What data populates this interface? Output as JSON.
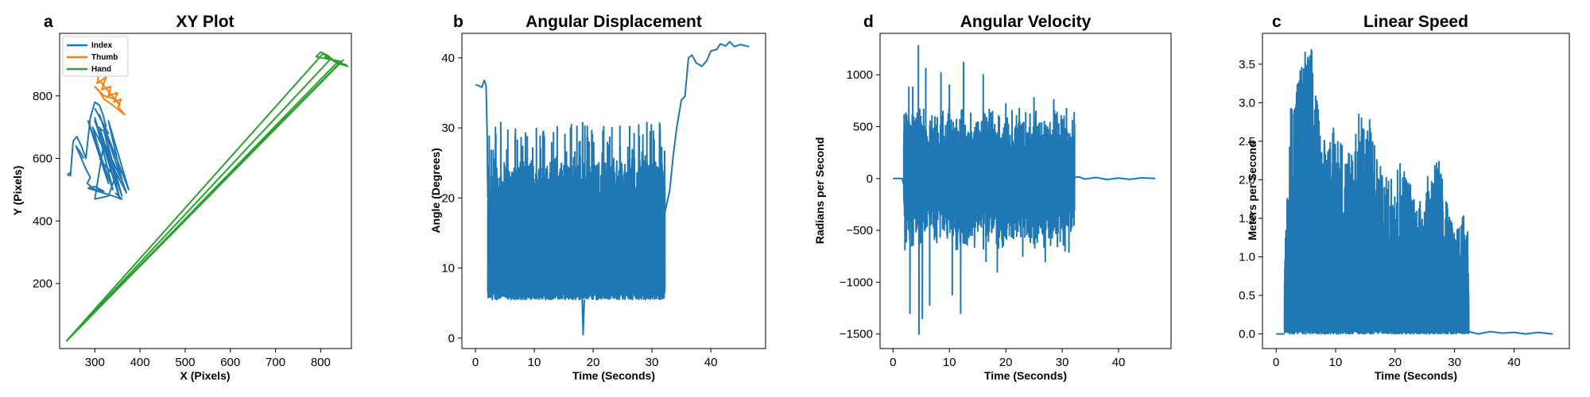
{
  "chart_data": [
    {
      "id": "xy",
      "panel_letter": "a",
      "type": "line",
      "title": "XY Plot",
      "xlabel": "X (Pixels)",
      "ylabel": "Y (Pixels)",
      "xlim": [
        222,
        868
      ],
      "ylim": [
        -8,
        1000
      ],
      "xticks": [
        300,
        400,
        500,
        600,
        700,
        800
      ],
      "yticks": [
        200,
        400,
        600,
        800
      ],
      "grid": false,
      "legend": {
        "placement": "upper-left",
        "entries": [
          "Index",
          "Thumb",
          "Hand"
        ]
      },
      "series": [
        {
          "name": "Index",
          "color": "#1f77b4",
          "segments": [
            [
              [
                245,
                555
              ],
              [
                240,
                548
              ],
              [
                246,
                545
              ],
              [
                252,
                655
              ],
              [
                260,
                670
              ],
              [
                270,
                640
              ],
              [
                280,
                600
              ],
              [
                290,
                730
              ],
              [
                300,
                780
              ],
              [
                310,
                770
              ],
              [
                318,
                740
              ],
              [
                325,
                700
              ]
            ],
            [
              [
                300,
                760
              ],
              [
                330,
                680
              ],
              [
                305,
                700
              ],
              [
                345,
                560
              ],
              [
                300,
                720
              ],
              [
                350,
                520
              ],
              [
                310,
                700
              ],
              [
                360,
                480
              ],
              [
                320,
                690
              ],
              [
                355,
                470
              ],
              [
                300,
                730
              ],
              [
                340,
                500
              ],
              [
                285,
                720
              ],
              [
                330,
                520
              ],
              [
                295,
                700
              ],
              [
                370,
                490
              ],
              [
                310,
                740
              ],
              [
                375,
                500
              ],
              [
                330,
                720
              ],
              [
                360,
                530
              ],
              [
                320,
                650
              ],
              [
                300,
                470
              ],
              [
                330,
                480
              ],
              [
                345,
                540
              ],
              [
                310,
                600
              ]
            ],
            [
              [
                275,
                600
              ],
              [
                268,
                620
              ],
              [
                258,
                640
              ],
              [
                282,
                560
              ],
              [
                290,
                540
              ],
              [
                283,
                520
              ],
              [
                300,
                500
              ],
              [
                320,
                495
              ],
              [
                300,
                510
              ],
              [
                285,
                505
              ],
              [
                340,
                480
              ],
              [
                360,
                470
              ],
              [
                345,
                490
              ]
            ]
          ]
        },
        {
          "name": "Thumb",
          "color": "#ff7f0e",
          "segments": [
            [
              [
                292,
                985
              ],
              [
                296,
                960
              ],
              [
                290,
                930
              ],
              [
                300,
                900
              ],
              [
                295,
                870
              ],
              [
                310,
                880
              ],
              [
                305,
                840
              ],
              [
                325,
                860
              ],
              [
                315,
                820
              ],
              [
                335,
                830
              ],
              [
                330,
                800
              ],
              [
                350,
                810
              ],
              [
                342,
                780
              ],
              [
                358,
                790
              ],
              [
                352,
                765
              ],
              [
                366,
                740
              ],
              [
                340,
                770
              ],
              [
                320,
                790
              ],
              [
                312,
                810
              ],
              [
                300,
                830
              ],
              [
                320,
                800
              ],
              [
                345,
                790
              ],
              [
                355,
                770
              ],
              [
                310,
                850
              ]
            ]
          ]
        },
        {
          "name": "Hand",
          "color": "#2ca02c",
          "segments": [
            [
              [
                237,
                15
              ],
              [
                820,
                915
              ],
              [
                810,
                925
              ],
              [
                860,
                895
              ],
              [
                835,
                905
              ],
              [
                240,
                20
              ],
              [
                845,
                910
              ],
              [
                790,
                925
              ],
              [
                800,
                940
              ],
              [
                815,
                930
              ],
              [
                840,
                900
              ],
              [
                850,
                915
              ],
              [
                238,
                18
              ],
              [
                805,
                935
              ],
              [
                830,
                910
              ],
              [
                855,
                900
              ],
              [
                860,
                893
              ]
            ]
          ]
        }
      ]
    },
    {
      "id": "angdisp",
      "panel_letter": "b",
      "type": "line",
      "title": "Angular Displacement",
      "xlabel": "Time (Seconds)",
      "ylabel": "Angle (Degrees)",
      "xlim": [
        -2.3,
        49.3
      ],
      "ylim": [
        -1.5,
        43.5
      ],
      "xticks": [
        0,
        10,
        20,
        30,
        40
      ],
      "yticks": [
        0,
        10,
        20,
        30,
        40
      ],
      "grid": false,
      "series": [
        {
          "color": "#1f77b4",
          "segments": [
            [
              [
                0,
                36.2
              ],
              [
                0.6,
                36
              ],
              [
                1.1,
                35.8
              ],
              [
                1.5,
                36.8
              ],
              [
                1.8,
                36.1
              ],
              [
                2.0,
                29
              ],
              [
                2.1,
                20
              ]
            ],
            [
              [
                32.2,
                18
              ],
              [
                33,
                21
              ],
              [
                33.6,
                26
              ],
              [
                34.2,
                30
              ],
              [
                35,
                34
              ],
              [
                35.6,
                34.5
              ],
              [
                36.2,
                40
              ],
              [
                36.8,
                40.4
              ],
              [
                37.5,
                39.3
              ],
              [
                38.5,
                38.8
              ],
              [
                39.3,
                39.6
              ],
              [
                40,
                41
              ],
              [
                41,
                41.2
              ],
              [
                41.6,
                42
              ],
              [
                42.5,
                41.7
              ],
              [
                43.2,
                42.3
              ],
              [
                44,
                41.6
              ],
              [
                45,
                41.9
              ],
              [
                46.5,
                41.6
              ]
            ],
            [
              [
                18.1,
                7
              ],
              [
                18.3,
                0.5
              ],
              [
                18.5,
                5.5
              ]
            ]
          ],
          "oscillation": {
            "t_start": 2.1,
            "t_end": 32.2,
            "low": [
              5.5,
              7
            ],
            "high": [
              17,
              31
            ],
            "samples": 1600
          }
        }
      ]
    },
    {
      "id": "angvel",
      "panel_letter": "d",
      "type": "line",
      "title": "Angular Velocity",
      "xlabel": "Time (Seconds)",
      "ylabel": "Radians per Second",
      "xlim": [
        -2.3,
        49.3
      ],
      "ylim": [
        -1640,
        1400
      ],
      "xticks": [
        0,
        10,
        20,
        30,
        40
      ],
      "yticks": [
        -1500,
        -1000,
        -500,
        0,
        500,
        1000
      ],
      "grid": false,
      "series": [
        {
          "color": "#1f77b4",
          "segments": [
            [
              [
                0,
                0
              ],
              [
                1.6,
                0
              ],
              [
                1.9,
                -60
              ]
            ],
            [
              [
                32.2,
                10
              ],
              [
                33,
                15
              ],
              [
                34,
                -5
              ],
              [
                36,
                10
              ],
              [
                38,
                -10
              ],
              [
                40,
                5
              ],
              [
                42,
                -8
              ],
              [
                44,
                6
              ],
              [
                46.5,
                0
              ]
            ]
          ],
          "oscillation": {
            "t_start": 1.9,
            "t_end": 32.2,
            "peaks_hi": [
              [
                4.5,
                1280
              ],
              [
                3.5,
                880
              ],
              [
                5.8,
                1060
              ],
              [
                8.5,
                1020
              ],
              [
                12.5,
                1120
              ],
              [
                16,
                1000
              ],
              [
                10,
                900
              ],
              [
                2.8,
                880
              ],
              [
                20,
                720
              ],
              [
                25,
                780
              ],
              [
                28.5,
                760
              ],
              [
                31.8,
                560
              ]
            ],
            "peaks_lo": [
              [
                4.6,
                -1500
              ],
              [
                3,
                -1300
              ],
              [
                6.5,
                -1220
              ],
              [
                5.2,
                -1350
              ],
              [
                10.5,
                -1120
              ],
              [
                12,
                -1300
              ],
              [
                16.5,
                -800
              ],
              [
                18.5,
                -900
              ],
              [
                23,
                -750
              ],
              [
                27,
                -800
              ],
              [
                30.5,
                -700
              ]
            ],
            "samples": 1600
          }
        }
      ]
    },
    {
      "id": "linspeed",
      "panel_letter": "c",
      "type": "line",
      "title": "Linear Speed",
      "xlabel": "Time (Seconds)",
      "ylabel": "Meters per Second",
      "xlim": [
        -2.3,
        49.3
      ],
      "ylim": [
        -0.19,
        3.9
      ],
      "xticks": [
        0,
        10,
        20,
        30,
        40
      ],
      "yticks": [
        0.0,
        0.5,
        1.0,
        1.5,
        2.0,
        2.5,
        3.0,
        3.5
      ],
      "tick_format": "1dp",
      "grid": false,
      "series": [
        {
          "color": "#1f77b4",
          "segments": [
            [
              [
                0,
                0
              ],
              [
                1.4,
                0
              ]
            ],
            [
              [
                32.4,
                0.03
              ],
              [
                34,
                0
              ],
              [
                36,
                0.03
              ],
              [
                38,
                0.01
              ],
              [
                40,
                0.02
              ],
              [
                42,
                0
              ],
              [
                44,
                0.02
              ],
              [
                46.5,
                0
              ]
            ]
          ],
          "envelope": [
            [
              1.4,
              0.9
            ],
            [
              2.5,
              3.1
            ],
            [
              4.5,
              3.7
            ],
            [
              6,
              3.75
            ],
            [
              7.5,
              2.6
            ],
            [
              10,
              2.7
            ],
            [
              12,
              2.4
            ],
            [
              14,
              2.9
            ],
            [
              16,
              2.8
            ],
            [
              18,
              2.0
            ],
            [
              21,
              2.3
            ],
            [
              24,
              1.7
            ],
            [
              27,
              2.4
            ],
            [
              30,
              1.3
            ],
            [
              31.8,
              1.6
            ],
            [
              32.4,
              1.3
            ]
          ],
          "oscillation": {
            "t_start": 1.4,
            "t_end": 32.4,
            "samples": 1600
          }
        }
      ]
    }
  ]
}
